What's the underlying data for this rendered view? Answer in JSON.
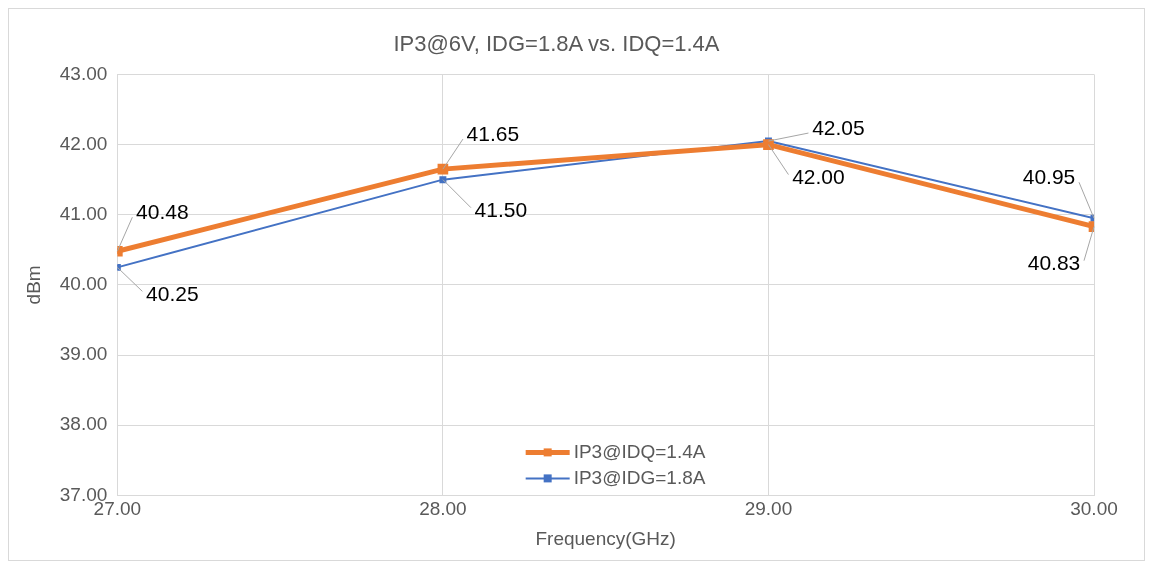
{
  "chart_data": {
    "type": "line",
    "title": "IP3@6V, IDG=1.8A vs. IDQ=1.4A",
    "xlabel": "Frequency(GHz)",
    "ylabel": "dBm",
    "x": [
      27,
      28,
      29,
      30
    ],
    "series": [
      {
        "name": "IP3@IDQ=1.4A",
        "color": "#ed7d31",
        "values": [
          40.48,
          41.65,
          42.0,
          40.83
        ],
        "value_labels": [
          "40.48",
          "41.65",
          "42.00",
          "40.83"
        ]
      },
      {
        "name": "IP3@IDG=1.8A",
        "color": "#4472c4",
        "values": [
          40.25,
          41.5,
          42.05,
          40.95
        ],
        "value_labels": [
          "40.25",
          "41.50",
          "42.05",
          "40.95"
        ]
      }
    ],
    "xlim": [
      27,
      30
    ],
    "xticks": [
      {
        "value": 27,
        "label": "27.00"
      },
      {
        "value": 28,
        "label": "28.00"
      },
      {
        "value": 29,
        "label": "29.00"
      },
      {
        "value": 30,
        "label": "30.00"
      }
    ],
    "ylim": [
      37,
      43
    ],
    "yticks": [
      {
        "value": 37,
        "label": "37.00"
      },
      {
        "value": 38,
        "label": "38.00"
      },
      {
        "value": 39,
        "label": "39.00"
      },
      {
        "value": 40,
        "label": "40.00"
      },
      {
        "value": 41,
        "label": "41.00"
      },
      {
        "value": 42,
        "label": "42.00"
      },
      {
        "value": 43,
        "label": "43.00"
      }
    ],
    "grid": true,
    "legend": "bottom",
    "marker": "square",
    "line_style": "solid"
  }
}
